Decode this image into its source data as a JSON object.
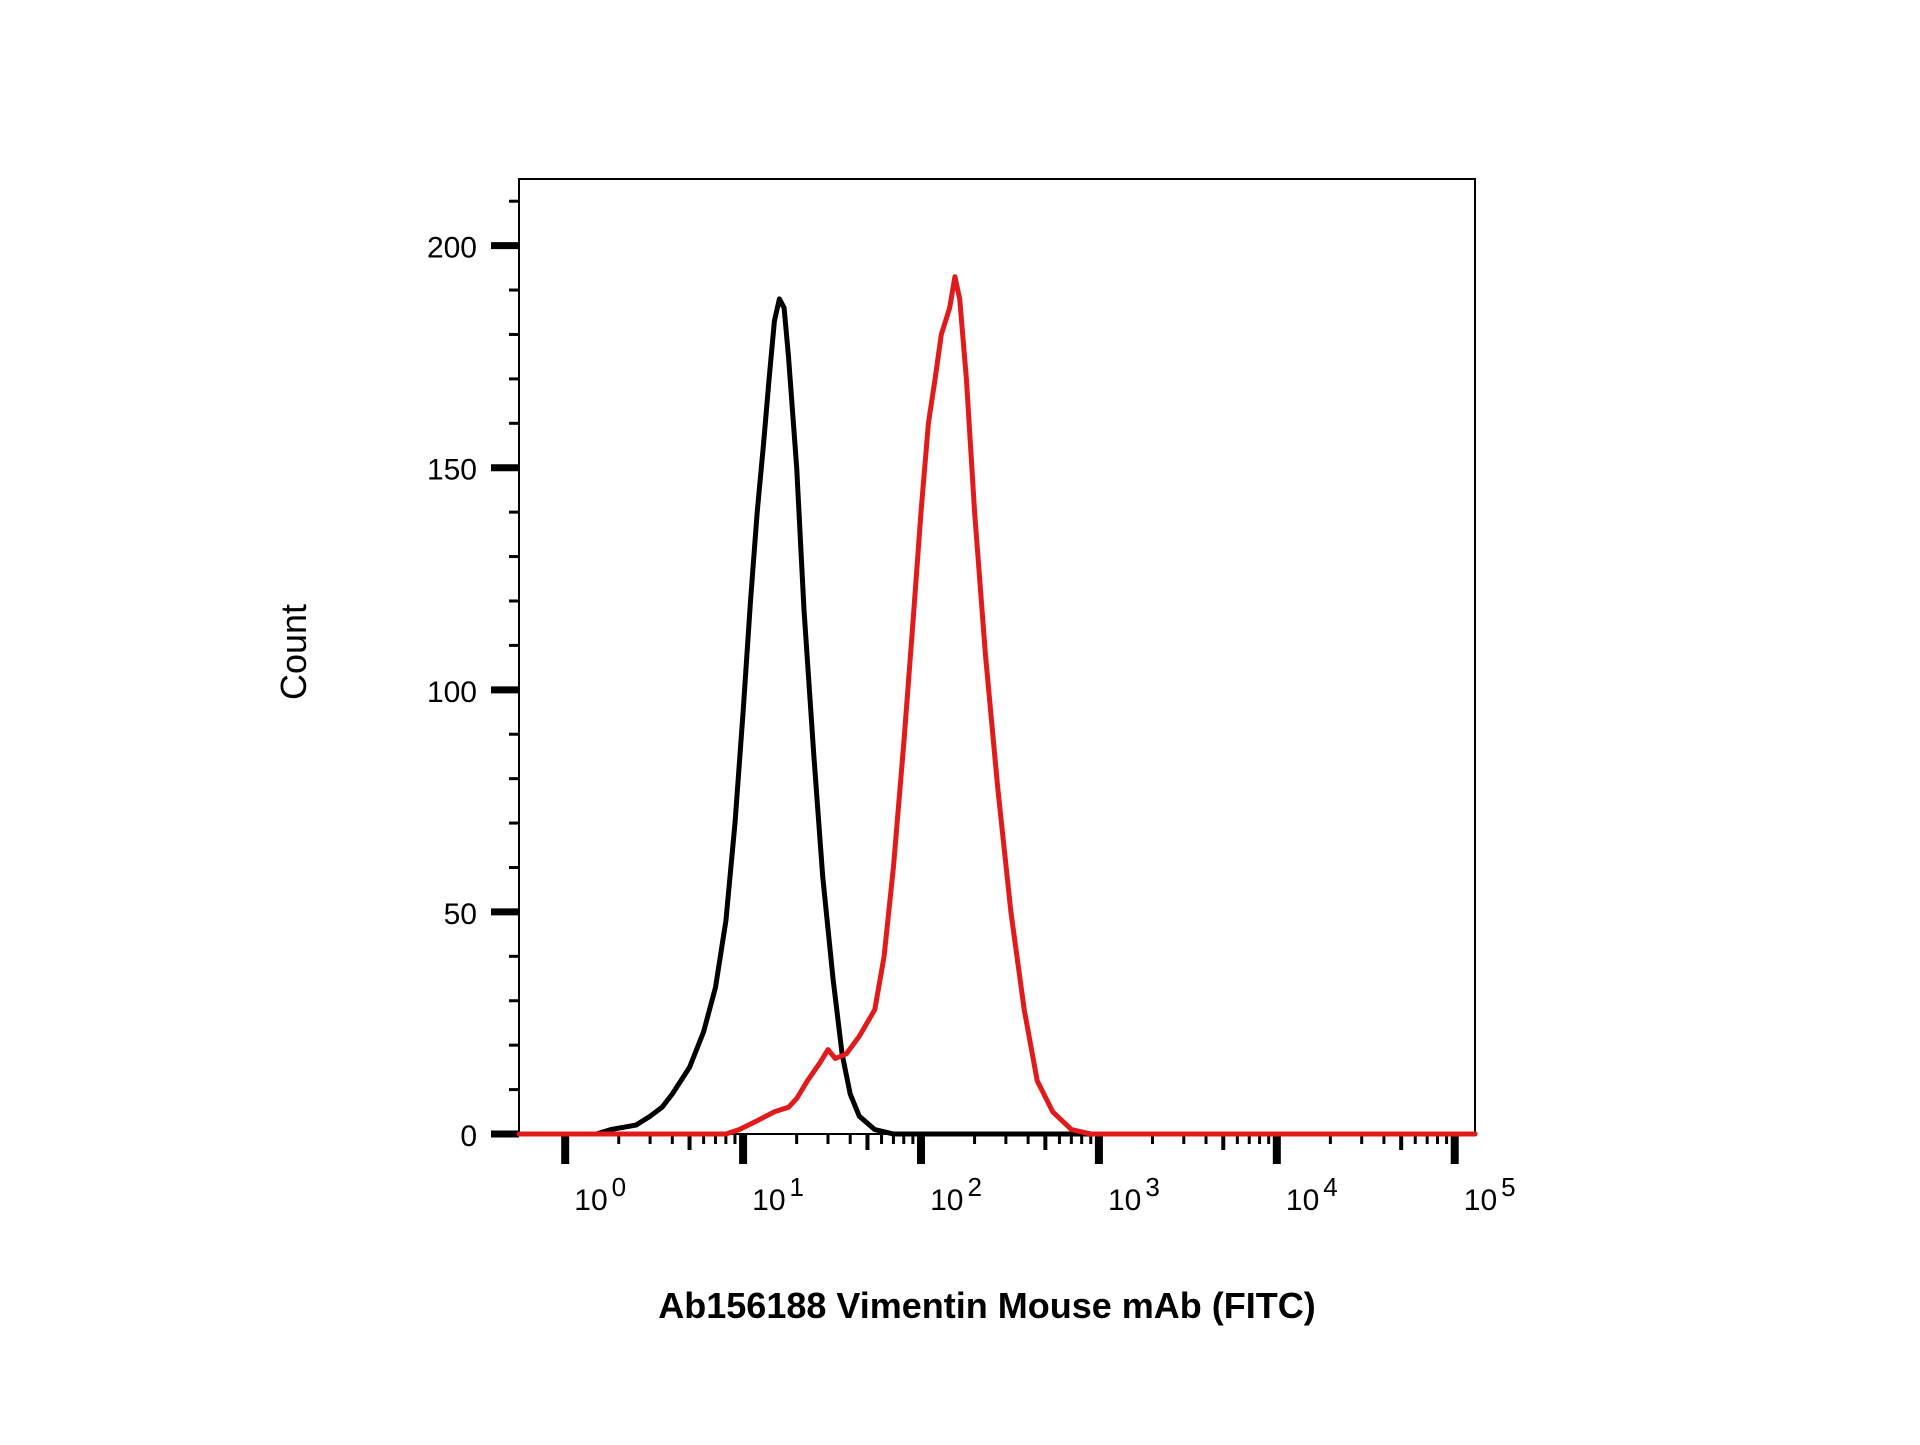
{
  "chart_data": {
    "type": "line",
    "title": "",
    "xlabel": "Ab156188 Vimentin Mouse mAb (FITC)",
    "ylabel": "Count",
    "x_scale": "log",
    "xlim": [
      0.55,
      130000
    ],
    "ylim": [
      0,
      215
    ],
    "y_ticks": [
      "0",
      "50",
      "100",
      "150",
      "200"
    ],
    "x_ticks": [
      {
        "base": "10",
        "exp": "0"
      },
      {
        "base": "10",
        "exp": "1"
      },
      {
        "base": "10",
        "exp": "2"
      },
      {
        "base": "10",
        "exp": "3"
      },
      {
        "base": "10",
        "exp": "4"
      },
      {
        "base": "10",
        "exp": "5"
      }
    ],
    "grid": false,
    "legend": "none",
    "series": [
      {
        "color": "#000000",
        "points": [
          [
            0.55,
            0
          ],
          [
            1.5,
            0
          ],
          [
            1.8,
            1
          ],
          [
            2.5,
            2
          ],
          [
            3.0,
            4
          ],
          [
            3.5,
            6
          ],
          [
            4.0,
            9
          ],
          [
            5.0,
            15
          ],
          [
            6.0,
            23
          ],
          [
            7.0,
            33
          ],
          [
            8.0,
            48
          ],
          [
            9.0,
            70
          ],
          [
            10.0,
            95
          ],
          [
            11.0,
            120
          ],
          [
            12.0,
            140
          ],
          [
            13.0,
            155
          ],
          [
            14.0,
            170
          ],
          [
            15.0,
            183
          ],
          [
            16.0,
            188
          ],
          [
            17.0,
            186
          ],
          [
            18.0,
            175
          ],
          [
            20.0,
            150
          ],
          [
            22.0,
            118
          ],
          [
            25.0,
            85
          ],
          [
            28.0,
            58
          ],
          [
            32.0,
            35
          ],
          [
            36.0,
            18
          ],
          [
            40.0,
            9
          ],
          [
            45.0,
            4
          ],
          [
            55.0,
            1
          ],
          [
            70.0,
            0
          ],
          [
            130000,
            0
          ]
        ]
      },
      {
        "color": "#e11b1b",
        "points": [
          [
            0.55,
            0
          ],
          [
            8.0,
            0
          ],
          [
            9.5,
            1
          ],
          [
            12.0,
            3
          ],
          [
            15.0,
            5
          ],
          [
            18.0,
            6
          ],
          [
            20.0,
            8
          ],
          [
            23.0,
            12
          ],
          [
            27.0,
            16
          ],
          [
            30.0,
            19
          ],
          [
            33.0,
            17
          ],
          [
            38.0,
            18
          ],
          [
            45.0,
            22
          ],
          [
            55.0,
            28
          ],
          [
            62.0,
            40
          ],
          [
            70.0,
            60
          ],
          [
            80.0,
            88
          ],
          [
            90.0,
            115
          ],
          [
            100.0,
            140
          ],
          [
            110.0,
            160
          ],
          [
            120.0,
            170
          ],
          [
            130.0,
            180
          ],
          [
            145.0,
            186
          ],
          [
            155.0,
            193
          ],
          [
            165.0,
            188
          ],
          [
            180.0,
            170
          ],
          [
            200.0,
            140
          ],
          [
            230.0,
            108
          ],
          [
            270.0,
            78
          ],
          [
            320.0,
            50
          ],
          [
            380.0,
            28
          ],
          [
            450.0,
            12
          ],
          [
            550.0,
            5
          ],
          [
            700.0,
            1
          ],
          [
            900.0,
            0
          ],
          [
            130000,
            0
          ]
        ]
      }
    ]
  }
}
